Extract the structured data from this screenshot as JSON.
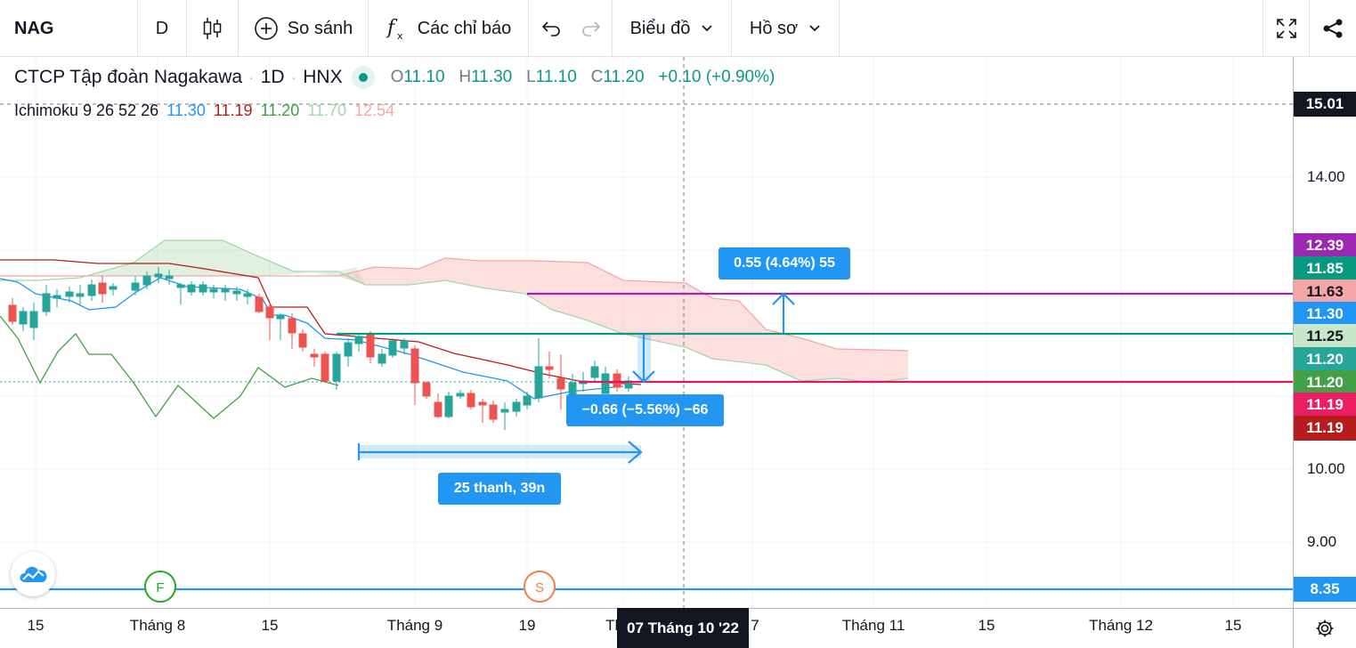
{
  "toolbar": {
    "symbol": "NAG",
    "interval": "D",
    "compare_label": "So sánh",
    "indicators_label": "Các chỉ báo",
    "chart_type_label": "Biểu đồ",
    "profile_label": "Hồ sơ"
  },
  "legend": {
    "name": "CTCP Tập đoàn Nagakawa",
    "interval": "1D",
    "exchange": "HNX",
    "o_label": "O",
    "o": "11.10",
    "h_label": "H",
    "h": "11.30",
    "l_label": "L",
    "l": "11.10",
    "c_label": "C",
    "c": "11.20",
    "change": "+0.10 (+0.90%)"
  },
  "ichimoku": {
    "label": "Ichimoku 9 26 52 26",
    "values": [
      "11.30",
      "11.19",
      "11.20",
      "11.70",
      "12.54"
    ]
  },
  "price_axis": {
    "ticks": [
      "14.00",
      "10.00",
      "9.00"
    ],
    "labels": [
      {
        "text": "15.01",
        "color": "#131722"
      },
      {
        "text": "12.39",
        "color": "#9c27b0"
      },
      {
        "text": "11.85",
        "color": "#089981"
      },
      {
        "text": "11.63",
        "color": "#f5a6a6"
      },
      {
        "text": "11.30",
        "color": "#2196f3"
      },
      {
        "text": "11.25",
        "color": "#a5d6a7"
      },
      {
        "text": "11.20",
        "color": "#26a69a"
      },
      {
        "text": "11.20",
        "color": "#43a047"
      },
      {
        "text": "11.19",
        "color": "#e91e63"
      },
      {
        "text": "11.19",
        "color": "#b71c1c"
      },
      {
        "text": "8.35",
        "color": "#2196f3"
      }
    ]
  },
  "time_axis": {
    "labels": [
      "15",
      "Tháng 8",
      "15",
      "Tháng 9",
      "19",
      "Th",
      "7",
      "Tháng 11",
      "15",
      "Tháng 12",
      "15"
    ],
    "crosshair_label": "07 Tháng 10 '22"
  },
  "drawings": {
    "upper_measure": "0.55 (4.64%) 55",
    "lower_measure": "−0.66 (−5.56%) −66",
    "range_measure": "25 thanh, 39n",
    "marker_f": "F",
    "marker_s": "S"
  },
  "colors": {
    "up": "#26a69a",
    "down": "#ef5350",
    "accent": "#2196f3"
  }
}
